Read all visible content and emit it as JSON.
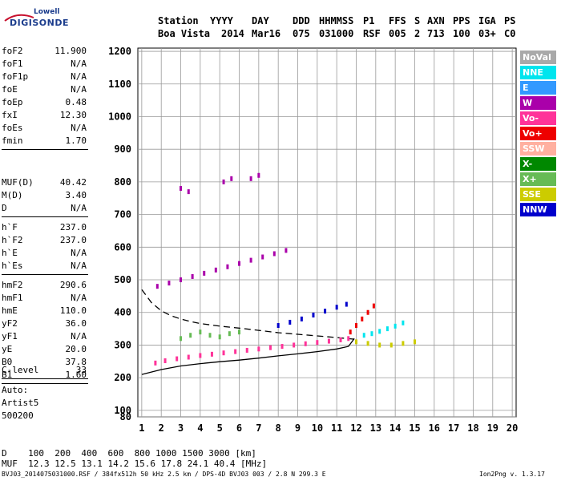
{
  "logo": {
    "line1": "Lowell",
    "line2": "DIGISONDE"
  },
  "header": {
    "labels": [
      "Station",
      "YYYY",
      "DAY",
      "DDD",
      "HHMMSS",
      "P1",
      "FFS",
      "S",
      "AXN",
      "PPS",
      "IGA",
      "PS"
    ],
    "values": [
      "Boa Vista",
      "2014",
      "Mar16",
      "075",
      "031000",
      "RSF",
      "005",
      "2",
      "713",
      "100",
      "03+",
      "C0"
    ]
  },
  "params_group1": [
    {
      "k": "foF2",
      "v": "11.900"
    },
    {
      "k": "foF1",
      "v": "N/A"
    },
    {
      "k": "foF1p",
      "v": "N/A"
    },
    {
      "k": "foE",
      "v": "N/A"
    },
    {
      "k": "foEp",
      "v": "0.48"
    },
    {
      "k": "fxI",
      "v": "12.30"
    },
    {
      "k": "foEs",
      "v": "N/A"
    },
    {
      "k": "fmin",
      "v": "1.70"
    }
  ],
  "params_group2": [
    {
      "k": "MUF(D)",
      "v": "40.42"
    },
    {
      "k": "M(D)",
      "v": "3.40"
    },
    {
      "k": "D",
      "v": "N/A"
    }
  ],
  "params_group3": [
    {
      "k": "h`F",
      "v": "237.0"
    },
    {
      "k": "h`F2",
      "v": "237.0"
    },
    {
      "k": "h`E",
      "v": "N/A"
    },
    {
      "k": "h`Es",
      "v": "N/A"
    }
  ],
  "params_group4": [
    {
      "k": "hmF2",
      "v": "290.6"
    },
    {
      "k": "hmF1",
      "v": "N/A"
    },
    {
      "k": "hmE",
      "v": "110.0"
    },
    {
      "k": "yF2",
      "v": "36.0"
    },
    {
      "k": "yF1",
      "v": "N/A"
    },
    {
      "k": "yE",
      "v": "20.0"
    },
    {
      "k": "B0",
      "v": "37.8"
    },
    {
      "k": "B1",
      "v": "1.60"
    }
  ],
  "params_group5": [
    {
      "k": "C-level",
      "v": "33"
    }
  ],
  "auto": [
    "Auto:",
    "Artist5",
    "500200"
  ],
  "legend": [
    {
      "label": "NoVal",
      "color": "#a9a9a9"
    },
    {
      "label": "NNE",
      "color": "#00e5ee"
    },
    {
      "label": "E",
      "color": "#3399ff"
    },
    {
      "label": "W",
      "color": "#aa00aa"
    },
    {
      "label": "Vo-",
      "color": "#ff3399"
    },
    {
      "label": "Vo+",
      "color": "#ee0000"
    },
    {
      "label": "SSW",
      "color": "#ffb0a0"
    },
    {
      "label": "X-",
      "color": "#008800"
    },
    {
      "label": "X+",
      "color": "#66bb55"
    },
    {
      "label": "SSE",
      "color": "#cccc00"
    },
    {
      "label": "NNW",
      "color": "#0000cc"
    }
  ],
  "bottom": {
    "d_line": "D    100  200  400  600  800 1000 1500 3000 [km]",
    "muf_line": "MUF  12.3 12.5 13.1 14.2 15.6 17.8 24.1 40.4 [MHz]",
    "footer_left": "BVJ03_2014075031000.RSF / 384fx512h 50 kHz 2.5 km / DPS-4D BVJ03 003 / 2.8 N 299.3 E",
    "footer_right": "Ion2Png v. 1.3.17"
  },
  "chart_data": {
    "type": "scatter",
    "xlim": [
      0.8,
      20.2
    ],
    "ylim": [
      80,
      1210
    ],
    "x_ticks": [
      1,
      2,
      3,
      4,
      5,
      6,
      7,
      8,
      9,
      10,
      11,
      12,
      13,
      14,
      15,
      16,
      17,
      18,
      19,
      20
    ],
    "y_ticks": [
      80,
      100,
      200,
      300,
      400,
      500,
      600,
      700,
      800,
      900,
      1000,
      1100,
      1200
    ],
    "grid": true,
    "legend_position": "right",
    "series": [
      {
        "color": "#ff3399",
        "x": [
          1.7,
          2.2,
          2.8,
          3.4,
          4.0,
          4.6,
          5.2,
          5.8,
          6.4,
          7.0,
          7.6,
          8.2,
          8.8,
          9.4,
          10.0,
          10.6,
          11.2,
          11.6
        ],
        "y": [
          245,
          252,
          258,
          263,
          268,
          272,
          276,
          280,
          284,
          288,
          292,
          296,
          300,
          304,
          308,
          312,
          316,
          320
        ]
      },
      {
        "color": "#aa00aa",
        "x": [
          1.8,
          2.4,
          3.0,
          3.6,
          4.2,
          4.8,
          5.4,
          6.0,
          6.6,
          7.2,
          7.8,
          8.4
        ],
        "y": [
          480,
          490,
          500,
          510,
          520,
          530,
          540,
          550,
          560,
          570,
          580,
          590
        ]
      },
      {
        "color": "#0000cc",
        "x": [
          8.0,
          8.6,
          9.2,
          9.8,
          10.4,
          11.0,
          11.5
        ],
        "y": [
          360,
          370,
          380,
          392,
          404,
          416,
          425
        ]
      },
      {
        "color": "#00e5ee",
        "x": [
          12.4,
          12.8,
          13.2,
          13.6,
          14.0,
          14.4
        ],
        "y": [
          330,
          335,
          342,
          350,
          358,
          368
        ]
      },
      {
        "color": "#cccc00",
        "x": [
          12.0,
          12.6,
          13.2,
          13.8,
          14.4,
          15.0
        ],
        "y": [
          310,
          305,
          300,
          300,
          305,
          310
        ]
      },
      {
        "color": "#ee0000",
        "x": [
          11.7,
          12.0,
          12.3,
          12.6,
          12.9
        ],
        "y": [
          340,
          360,
          380,
          400,
          420
        ]
      },
      {
        "color": "#66bb55",
        "x": [
          3.0,
          3.5,
          4.0,
          4.5,
          5.0,
          5.5,
          6.0
        ],
        "y": [
          320,
          330,
          340,
          330,
          325,
          335,
          340
        ]
      },
      {
        "color": "#aa00aa",
        "x": [
          3.0,
          3.4,
          5.2,
          5.6,
          6.6,
          7.0
        ],
        "y": [
          780,
          770,
          800,
          810,
          810,
          820
        ]
      }
    ],
    "profile_solid": {
      "x": [
        1.0,
        2.0,
        3.0,
        4.0,
        5.0,
        6.0,
        7.0,
        8.0,
        9.0,
        10.0,
        11.0,
        11.6,
        11.9
      ],
      "y": [
        210,
        225,
        236,
        243,
        249,
        254,
        260,
        267,
        273,
        280,
        288,
        296,
        320
      ]
    },
    "profile_dashed": {
      "x": [
        1.0,
        1.5,
        2.0,
        2.5,
        3.0,
        3.5,
        4.0,
        5.0,
        6.0,
        7.0,
        8.0,
        9.0,
        10.0,
        11.0,
        11.9
      ],
      "y": [
        470,
        430,
        405,
        390,
        380,
        372,
        366,
        358,
        352,
        345,
        338,
        333,
        328,
        323,
        318
      ]
    }
  }
}
